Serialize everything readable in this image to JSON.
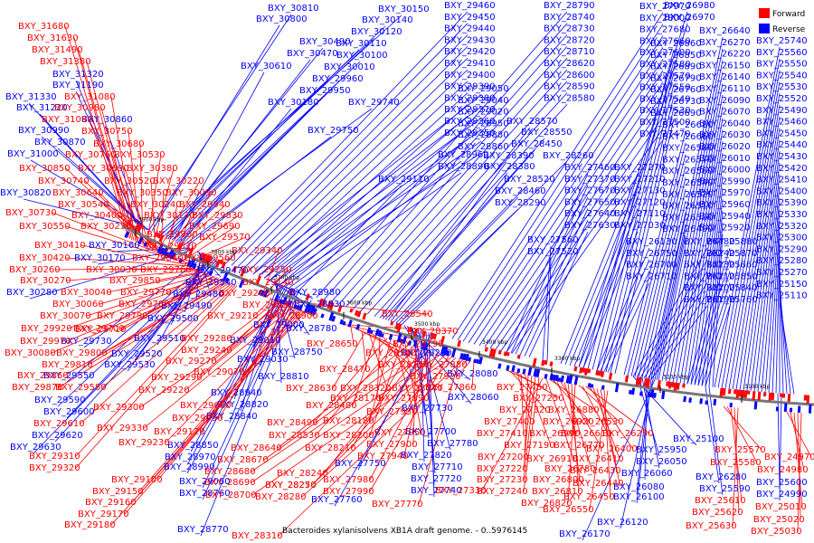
{
  "caption": "Bacteroides xylanisolvens XB1A draft genome. - 0..5976145",
  "legend": [
    {
      "label": "Forward",
      "color": "#ff0000"
    },
    {
      "label": "Reverse",
      "color": "#0000ff"
    }
  ],
  "colors": {
    "forward": "#ff0000",
    "reverse": "#0000ff",
    "backbone": "#888888"
  },
  "ticks": [
    "3900 kbp",
    "3800 kbp",
    "3700 kbp",
    "3600 kbp",
    "3500 kbp",
    "3400 kbp",
    "3300 kbp",
    "3200 kbp",
    "3100 kbp"
  ],
  "labels_reverse": [
    "BXY_30810",
    "BXY_30800",
    "BXY_30150",
    "BXY_30140",
    "BXY_30120",
    "BXY_30110",
    "BXY_30490",
    "BXY_30470",
    "BXY_30100",
    "BXY_30610",
    "BXY_30010",
    "BXY_29960",
    "BXY_29950",
    "BXY_30180",
    "BXY_29740",
    "BXY_29750",
    "BXY_31320",
    "BXY_31190",
    "BXY_31330",
    "BXY_31220",
    "BXY_30860",
    "BXY_30990",
    "BXY_30870",
    "BXY_31000",
    "BXY_30820",
    "BXY_30160",
    "BXY_30170",
    "BXY_30280",
    "BXY_29470",
    "BXY_29540",
    "BXY_29480",
    "BXY_29490",
    "BXY_29500",
    "BXY_29730",
    "BXY_29510",
    "BXY_29520",
    "BXY_29530",
    "BXY_29550",
    "BXY_29590",
    "BXY_29600",
    "BXY_29620",
    "BXY_29630",
    "BXY_29460",
    "BXY_29450",
    "BXY_29440",
    "BXY_29430",
    "BXY_29420",
    "BXY_29410",
    "BXY_29400",
    "BXY_29390",
    "BXY_29380",
    "BXY_29370",
    "BXY_29360",
    "BXY_29350",
    "BXY_29110",
    "BXY_29050",
    "BXY_29040",
    "BXY_29020",
    "BXY_28950",
    "BXY_28880",
    "BXY_28860",
    "BXY_28960",
    "BXY_28890",
    "BXY_28980",
    "BXY_28830",
    "BXY_28780",
    "BXY_28750",
    "BXY_28810",
    "BXY_28940",
    "BXY_28820",
    "BXY_28840",
    "BXY_28850",
    "BXY_28970",
    "BXY_28990",
    "BXY_29030",
    "BXY_29010",
    "BXY_29000",
    "BXY_29060",
    "BXY_28760",
    "BXY_28770",
    "BXY_28790",
    "BXY_28740",
    "BXY_28730",
    "BXY_28720",
    "BXY_28710",
    "BXY_28620",
    "BXY_28600",
    "BXY_28590",
    "BXY_28580",
    "BXY_28570",
    "BXY_28550",
    "BXY_28450",
    "BXY_28390",
    "BXY_28380",
    "BXY_28520",
    "BXY_28460",
    "BXY_28290",
    "BXY_28260",
    "BXY_28230",
    "BXY_28080",
    "BXY_28060",
    "BXY_27730",
    "BXY_27700",
    "BXY_27780",
    "BXY_27820",
    "BXY_27710",
    "BXY_27720",
    "BXY_27740",
    "BXY_27750",
    "BXY_27760",
    "BXY_27970",
    "BXY_28000",
    "BXY_27680",
    "BXY_27660",
    "BXY_27600",
    "BXY_27580",
    "BXY_27570",
    "BXY_27550",
    "BXY_27540",
    "BXY_27530",
    "BXY_27500",
    "BXY_27470",
    "BXY_27460",
    "BXY_27370",
    "BXY_27670",
    "BXY_27650",
    "BXY_27640",
    "BXY_27630",
    "BXY_27560",
    "BXY_27520",
    "BXY_27270",
    "BXY_27210",
    "BXY_27130",
    "BXY_27120",
    "BXY_27110",
    "BXY_27030",
    "BXY_26980",
    "BXY_26970",
    "BXY_26860",
    "BXY_26850",
    "BXY_26890",
    "BXY_26790",
    "BXY_26760",
    "BXY_26730",
    "BXY_26690",
    "BXY_26680",
    "BXY_26660",
    "BXY_26580",
    "BXY_26570",
    "BXY_26560",
    "BXY_26540",
    "BXY_26520",
    "BXY_26510",
    "BXY_26500",
    "BXY_26490",
    "BXY_26480",
    "BXY_26240",
    "BXY_26230",
    "BXY_26210",
    "BXY_26200",
    "BXY_26190",
    "BXY_26130",
    "BXY_26750",
    "BXY_26700",
    "BXY_26710",
    "BXY_26640",
    "BXY_26270",
    "BXY_26220",
    "BXY_26150",
    "BXY_26140",
    "BXY_26110",
    "BXY_26090",
    "BXY_26070",
    "BXY_26040",
    "BXY_26030",
    "BXY_26020",
    "BXY_26010",
    "BXY_26000",
    "BXY_25990",
    "BXY_25970",
    "BXY_25960",
    "BXY_25940",
    "BXY_25920",
    "BXY_25880",
    "BXY_25870",
    "BXY_25860",
    "BXY_25850",
    "BXY_25840",
    "BXY_25760",
    "BXY_25740",
    "BXY_25560",
    "BXY_25550",
    "BXY_25540",
    "BXY_25530",
    "BXY_25520",
    "BXY_25490",
    "BXY_25460",
    "BXY_25450",
    "BXY_25440",
    "BXY_25430",
    "BXY_25420",
    "BXY_25410",
    "BXY_25400",
    "BXY_25390",
    "BXY_25330",
    "BXY_25320",
    "BXY_25300",
    "BXY_25290",
    "BXY_25280",
    "BXY_25270",
    "BXY_25150",
    "BXY_25110",
    "BXY_25100",
    "BXY_25950",
    "BXY_26050",
    "BXY_26060",
    "BXY_26080",
    "BXY_26100",
    "BXY_26120",
    "BXY_26170",
    "BXY_26280",
    "BXY_25590",
    "BXY_25600",
    "BXY_24990",
    "BXY_25000"
  ],
  "labels_forward": [
    "BXY_31680",
    "BXY_31630",
    "BXY_31490",
    "BXY_31380",
    "BXY_31080",
    "BXY_30980",
    "BXY_31090",
    "BXY_30750",
    "BXY_30680",
    "BXY_30760",
    "BXY_30530",
    "BXY_30850",
    "BXY_30690",
    "BXY_30380",
    "BXY_30740",
    "BXY_30520",
    "BXY_30220",
    "BXY_30640",
    "BXY_30350",
    "BXY_30090",
    "BXY_30540",
    "BXY_30240",
    "BXY_29940",
    "BXY_30730",
    "BXY_30400",
    "BXY_30130",
    "BXY_29830",
    "BXY_30550",
    "BXY_30250",
    "BXY_29690",
    "BXY_29900",
    "BXY_29570",
    "BXY_30410",
    "BXY_29820",
    "BXY_30420",
    "BXY_29840",
    "BXY_29560",
    "BXY_30260",
    "BXY_30030",
    "BXY_29760",
    "BXY_30270",
    "BXY_29850",
    "BXY_30040",
    "BXY_29770",
    "BXY_30060",
    "BXY_29780",
    "BXY_30070",
    "BXY_29790",
    "BXY_29920",
    "BXY_29700",
    "BXY_29970",
    "BXY_29710",
    "BXY_30080",
    "BXY_29800",
    "BXY_29810",
    "BXY_29860",
    "BXY_29870",
    "BXY_29580",
    "BXY_29610",
    "BXY_29310",
    "BXY_29320",
    "BXY_29340",
    "BXY_29250",
    "BXY_29140",
    "BXY_29260",
    "BXY_29130",
    "BXY_29210",
    "BXY_28900",
    "BXY_28540",
    "BXY_29280",
    "BXY_29240",
    "BXY_29270",
    "BXY_29070",
    "BXY_29290",
    "BXY_29220",
    "BXY_29080",
    "BXY_29300",
    "BXY_29090",
    "BXY_29330",
    "BXY_29120",
    "BXY_29230",
    "BXY_29100",
    "BXY_29150",
    "BXY_29160",
    "BXY_29170",
    "BXY_29180",
    "BXY_28370",
    "BXY_28190",
    "BXY_28650",
    "BXY_28360",
    "BXY_28150",
    "BXY_28470",
    "BXY_28630",
    "BXY_28320",
    "BXY_28040",
    "BXY_28480",
    "BXY_28170",
    "BXY_27890",
    "BXY_28490",
    "BXY_28180",
    "BXY_27930",
    "BXY_28530",
    "BXY_28200",
    "BXY_27950",
    "BXY_28640",
    "BXY_28210",
    "BXY_27900",
    "BXY_28670",
    "BXY_28240",
    "BXY_27940",
    "BXY_28680",
    "BXY_28250",
    "BXY_27980",
    "BXY_28690",
    "BXY_28270",
    "BXY_27990",
    "BXY_28700",
    "BXY_28280",
    "BXY_27770",
    "BXY_28310",
    "BXY_27880",
    "BXY_27920",
    "BXY_27860",
    "BXY_27450",
    "BXY_27320",
    "BXY_27250",
    "BXY_27400",
    "BXY_27410",
    "BXY_27190",
    "BXY_27200",
    "BXY_27220",
    "BXY_27230",
    "BXY_27240",
    "BXY_27330",
    "BXY_26910",
    "BXY_26880",
    "BXY_26920",
    "BXY_26990",
    "BXY_26770",
    "BXY_26780",
    "BXY_26800",
    "BXY_26810",
    "BXY_26820",
    "BXY_26530",
    "BXY_26610",
    "BXY_26250",
    "BXY_26400",
    "BXY_26410",
    "BXY_26430",
    "BXY_26440",
    "BXY_26450",
    "BXY_26550",
    "BXY_25570",
    "BXY_25580",
    "BXY_25610",
    "BXY_25620",
    "BXY_25630",
    "BXY_24970",
    "BXY_24980",
    "BXY_25010",
    "BXY_25020",
    "BXY_25030"
  ]
}
